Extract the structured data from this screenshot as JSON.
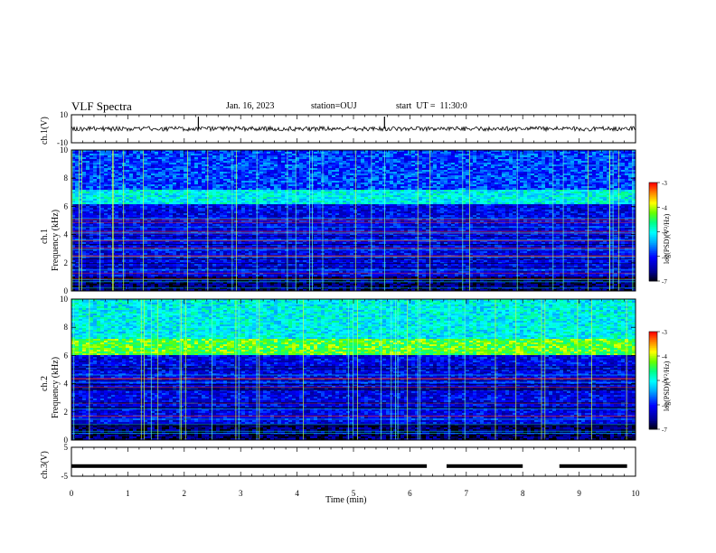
{
  "header": {
    "title": "VLF Spectra",
    "date": "Jan. 16, 2023",
    "station": "station=OUJ",
    "start": "start  UT =  11:30:0"
  },
  "chart_data": [
    {
      "type": "line",
      "panel": "ch1-waveform",
      "ylabel": "ch.1(V)",
      "ylim": [
        -10,
        10
      ],
      "yticks": [
        "10",
        "-10"
      ],
      "level": 0,
      "spikes_min": [
        2.25,
        5.55
      ]
    },
    {
      "type": "heatmap",
      "panel": "ch1-spectrogram",
      "ylabel_line1": "ch.1",
      "ylabel_line2": "Frequency (kHz)",
      "ylim": [
        0,
        10
      ],
      "yticks": [
        "0",
        "2",
        "4",
        "6",
        "8",
        "10"
      ],
      "intense_band_khz": [
        6.2,
        7.2
      ],
      "colorbar": {
        "label": "log(PSD)(V²/Hz)",
        "ticks": [
          "-3",
          "-4",
          "-5",
          "-6",
          "-7"
        ],
        "range": [
          -7,
          -3
        ]
      }
    },
    {
      "type": "heatmap",
      "panel": "ch2-spectrogram",
      "ylabel_line1": "ch.2",
      "ylabel_line2": "Frequency (kHz)",
      "ylim": [
        0,
        10
      ],
      "yticks": [
        "0",
        "2",
        "4",
        "6",
        "8",
        "10"
      ],
      "intense_band_khz": [
        6.0,
        7.2
      ],
      "colorbar": {
        "label": "log(PSD)(V²/Hz)",
        "ticks": [
          "-3",
          "-4",
          "-5",
          "-6",
          "-7"
        ],
        "range": [
          -7,
          -3
        ]
      }
    },
    {
      "type": "line",
      "panel": "ch3-waveform",
      "ylabel": "ch.3(V)",
      "ylim": [
        -5,
        5
      ],
      "yticks": [
        "5",
        "-5"
      ],
      "level": -1.5,
      "gaps_min": [
        [
          6.3,
          6.65
        ],
        [
          8.0,
          8.65
        ]
      ]
    }
  ],
  "xaxis": {
    "label": "Time (min)",
    "ticks": [
      "0",
      "1",
      "2",
      "3",
      "4",
      "5",
      "6",
      "7",
      "8",
      "9",
      "10"
    ],
    "range": [
      0,
      10
    ]
  },
  "colors": {
    "scale": [
      "#000000",
      "#00008b",
      "#0000ff",
      "#00aaff",
      "#00ffff",
      "#00ff88",
      "#66ff00",
      "#ffff00",
      "#ff8800",
      "#ff0000",
      "#ffffff"
    ]
  }
}
